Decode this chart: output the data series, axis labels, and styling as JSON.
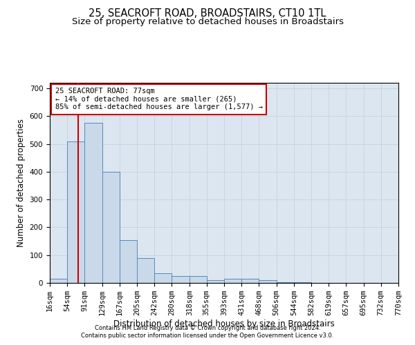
{
  "title": "25, SEACROFT ROAD, BROADSTAIRS, CT10 1TL",
  "subtitle": "Size of property relative to detached houses in Broadstairs",
  "xlabel": "Distribution of detached houses by size in Broadstairs",
  "ylabel": "Number of detached properties",
  "footnote1": "Contains HM Land Registry data © Crown copyright and database right 2024.",
  "footnote2": "Contains public sector information licensed under the Open Government Licence v3.0.",
  "annotation_line1": "25 SEACROFT ROAD: 77sqm",
  "annotation_line2": "← 14% of detached houses are smaller (265)",
  "annotation_line3": "85% of semi-detached houses are larger (1,577) →",
  "property_size": 77,
  "bin_edges": [
    16,
    54,
    91,
    129,
    167,
    205,
    242,
    280,
    318,
    355,
    393,
    431,
    468,
    506,
    544,
    582,
    619,
    657,
    695,
    732,
    770
  ],
  "bar_heights": [
    15,
    510,
    575,
    400,
    155,
    90,
    35,
    25,
    25,
    10,
    15,
    15,
    10,
    3,
    2,
    0,
    0,
    0,
    0,
    0
  ],
  "bar_color": "#c9d9ea",
  "bar_edge_color": "#5588bb",
  "vline_color": "#cc0000",
  "vline_x": 77,
  "annotation_box_color": "#cc0000",
  "ylim": [
    0,
    720
  ],
  "yticks": [
    0,
    100,
    200,
    300,
    400,
    500,
    600,
    700
  ],
  "grid_color": "#c8d0dc",
  "background_color": "#dce6f0",
  "title_fontsize": 10.5,
  "subtitle_fontsize": 9.5,
  "xlabel_fontsize": 8.5,
  "ylabel_fontsize": 8.5,
  "tick_fontsize": 7.5,
  "footnote_fontsize": 6.0
}
